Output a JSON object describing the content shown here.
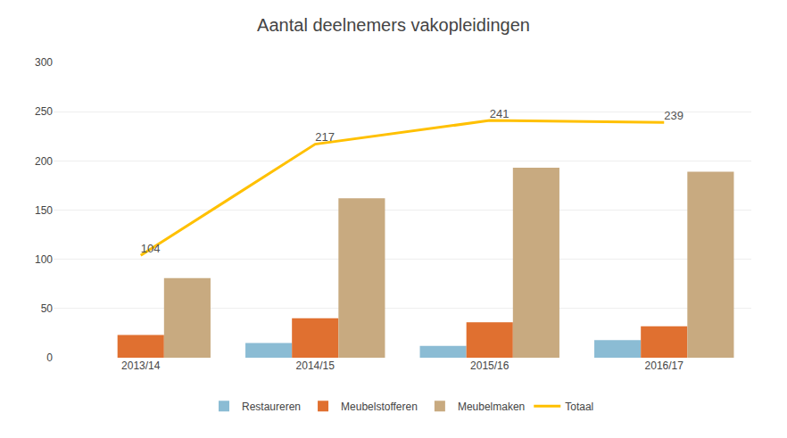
{
  "chart_data": {
    "type": "bar",
    "title": "Aantal deelnemers vakopleidingen",
    "categories": [
      "2013/14",
      "2014/15",
      "2015/16",
      "2016/17"
    ],
    "series": [
      {
        "name": "Restaureren",
        "type": "bar",
        "color": "#8bbcd4",
        "values": [
          0,
          15,
          12,
          18
        ]
      },
      {
        "name": "Meubelstofferen",
        "type": "bar",
        "color": "#e07030",
        "values": [
          23,
          40,
          36,
          32
        ]
      },
      {
        "name": "Meubelmaken",
        "type": "bar",
        "color": "#c8aa80",
        "values": [
          81,
          162,
          193,
          189
        ]
      },
      {
        "name": "Totaal",
        "type": "line",
        "color": "#ffc000",
        "values": [
          104,
          217,
          241,
          239
        ],
        "data_labels": true
      }
    ],
    "ylim": [
      0,
      300
    ],
    "yticks": [
      0,
      50,
      100,
      150,
      200,
      250,
      300
    ],
    "grid": true,
    "legend": "bottom"
  }
}
